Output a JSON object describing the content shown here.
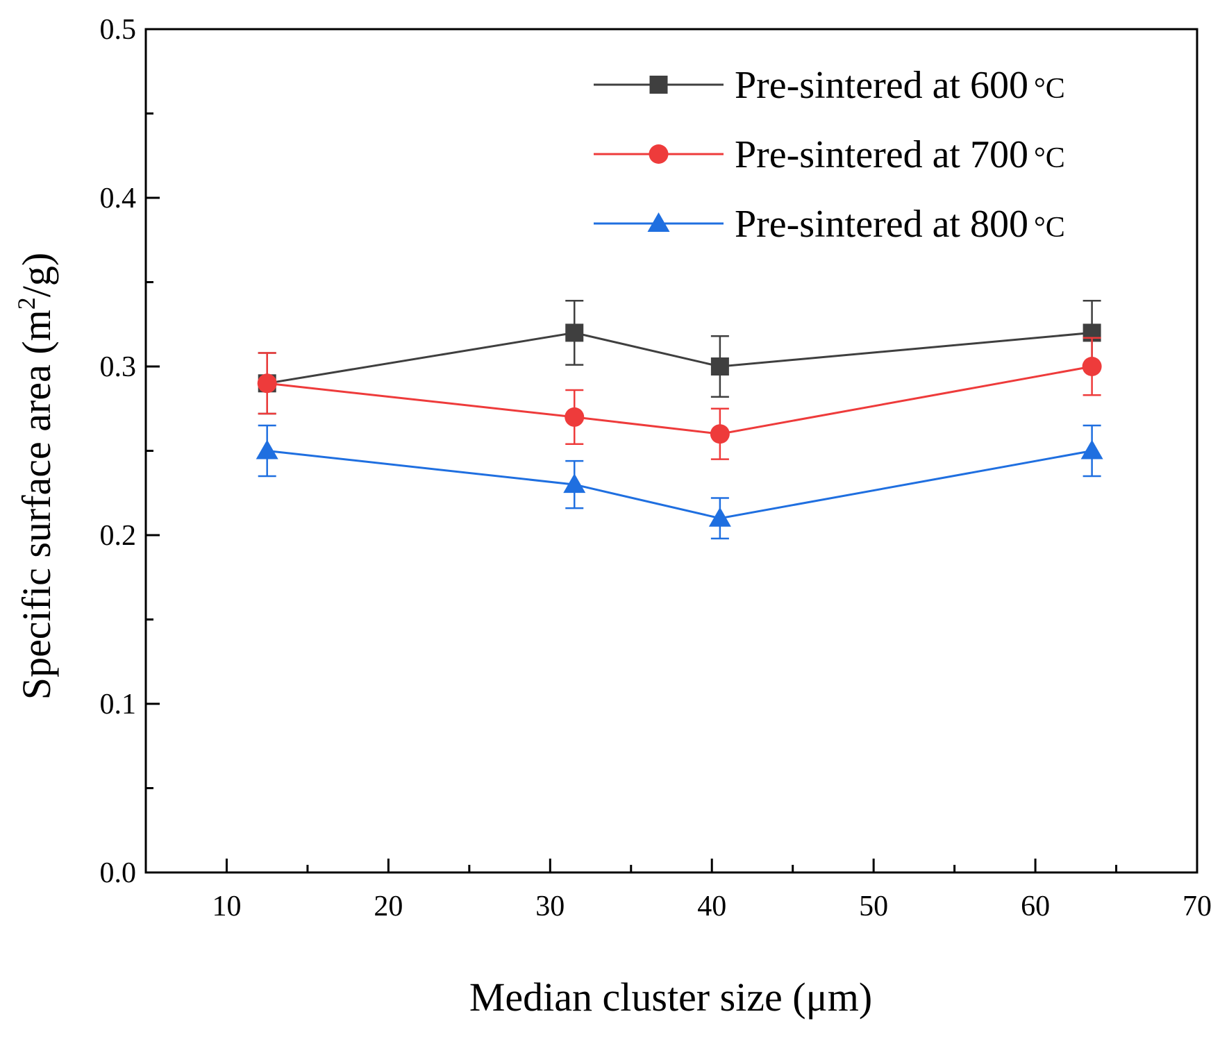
{
  "chart_data": {
    "type": "line",
    "title": "",
    "xlabel": "Median cluster size (μm)",
    "ylabel_main": "Specific surface area (m",
    "ylabel_sup": "2",
    "ylabel_tail": "/g)",
    "xlim": [
      5,
      70
    ],
    "ylim": [
      0.0,
      0.5
    ],
    "x_major_ticks": [
      10,
      20,
      30,
      40,
      50,
      60,
      70
    ],
    "x_minor_ticks": [
      15,
      25,
      35,
      45,
      55,
      65
    ],
    "y_major_ticks": [
      0.0,
      0.1,
      0.2,
      0.3,
      0.4,
      0.5
    ],
    "y_minor_ticks": [
      0.05,
      0.15,
      0.25,
      0.35,
      0.45
    ],
    "tick_labels_x": [
      "10",
      "20",
      "30",
      "40",
      "50",
      "60",
      "70"
    ],
    "tick_labels_y": [
      "0.0",
      "0.1",
      "0.2",
      "0.3",
      "0.4",
      "0.5"
    ],
    "grid": false,
    "legend_position": "top-right",
    "x": [
      12.5,
      31.5,
      40.5,
      63.5
    ],
    "series": [
      {
        "name": "Pre-sintered at 600",
        "unit": "°C",
        "color": "#3f3f3f",
        "marker": "square",
        "values": [
          0.29,
          0.32,
          0.3,
          0.32
        ],
        "errors": [
          0.018,
          0.019,
          0.018,
          0.019
        ]
      },
      {
        "name": "Pre-sintered at 700",
        "unit": "°C",
        "color": "#ee3b3b",
        "marker": "circle",
        "values": [
          0.29,
          0.27,
          0.26,
          0.3
        ],
        "errors": [
          0.018,
          0.016,
          0.015,
          0.017
        ]
      },
      {
        "name": "Pre-sintered at 800",
        "unit": "°C",
        "color": "#1f6fe0",
        "marker": "triangle",
        "values": [
          0.25,
          0.23,
          0.21,
          0.25
        ],
        "errors": [
          0.015,
          0.014,
          0.012,
          0.015
        ]
      }
    ]
  }
}
